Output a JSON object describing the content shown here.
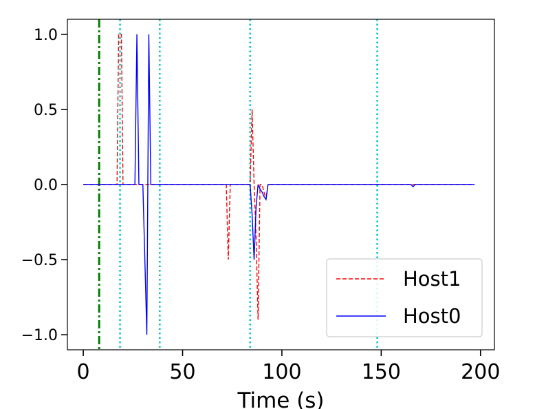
{
  "chart_data": {
    "type": "line",
    "title": "",
    "xlabel": "Time (s)",
    "ylabel": "",
    "xlim": [
      -8,
      207
    ],
    "ylim": [
      -1.1,
      1.1
    ],
    "xticks": [
      0,
      50,
      100,
      150,
      200
    ],
    "xtick_labels": [
      "0",
      "50",
      "100",
      "150",
      "200"
    ],
    "yticks": [
      -1.0,
      -0.5,
      0.0,
      0.5,
      1.0
    ],
    "ytick_labels": [
      "−1.0",
      "−0.5",
      "0.0",
      "0.5",
      "1.0"
    ],
    "grid": false,
    "legend_position": "lower-right",
    "series": [
      {
        "name": "Host1",
        "color": "#ff0000",
        "style": "dashed",
        "x": [
          0,
          17,
          17.8,
          18.5,
          19.2,
          20,
          72,
          73,
          74,
          84,
          85,
          86,
          87,
          88,
          89,
          90,
          91,
          92,
          93,
          197
        ],
        "y": [
          0,
          0,
          1.0,
          1.0,
          1.0,
          0,
          0,
          -0.5,
          0,
          0,
          0.5,
          0,
          -0.35,
          -0.9,
          0,
          0,
          -0.05,
          -0.1,
          0,
          0
        ]
      },
      {
        "name": "Host0",
        "color": "#0000ff",
        "style": "solid",
        "x": [
          0,
          26,
          27,
          28,
          29,
          30,
          31,
          32,
          33,
          34,
          84,
          85,
          86,
          87,
          88,
          89,
          90,
          91,
          92,
          93,
          165,
          166,
          167,
          197
        ],
        "y": [
          0,
          0,
          1.0,
          0,
          0,
          0,
          -0.5,
          -1.0,
          1.0,
          0,
          0,
          -0.2,
          -0.5,
          -0.15,
          0,
          -0.03,
          -0.05,
          -0.08,
          -0.1,
          0,
          0,
          -0.015,
          0,
          0
        ]
      }
    ],
    "vlines": [
      {
        "x": 8,
        "color": "#008000",
        "style": "dashdot"
      },
      {
        "x": 18.5,
        "color": "#00cccc",
        "style": "dotted"
      },
      {
        "x": 38.5,
        "color": "#00cccc",
        "style": "dotted"
      },
      {
        "x": 84,
        "color": "#00cccc",
        "style": "dotted"
      },
      {
        "x": 148,
        "color": "#00cccc",
        "style": "dotted"
      }
    ]
  }
}
